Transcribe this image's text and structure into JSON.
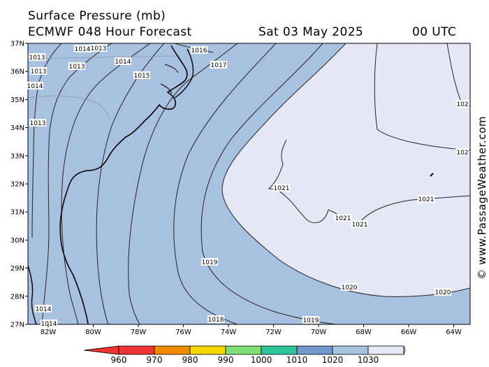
{
  "header": {
    "title_line1": "Surface Pressure (mb)",
    "title_line2": "ECMWF 048 Hour Forecast",
    "valid_date": "Sat 03 May 2025",
    "valid_time": "00 UTC"
  },
  "credit": "© www.PassageWeather.com",
  "map": {
    "lat_labels": [
      "37N",
      "36N",
      "35N",
      "34N",
      "33N",
      "32N",
      "31N",
      "30N",
      "29N",
      "28N",
      "27N"
    ],
    "lon_labels": [
      "82W",
      "80W",
      "78W",
      "76W",
      "74W",
      "72W",
      "70W",
      "68W",
      "66W",
      "64W"
    ],
    "fill_colors": {
      "band_1010": "#a9c1e0",
      "band_1020": "#e2e9f5",
      "land": "#a9c1e0"
    },
    "isobar_labels": [
      "1013",
      "1014",
      "1013",
      "1016",
      "1013",
      "1014",
      "1017",
      "1013",
      "1015",
      "1014",
      "1013",
      "1014",
      "1021",
      "1021",
      "1021",
      "1021",
      "1019",
      "1020",
      "1020",
      "1018",
      "1019",
      "1014",
      "102",
      "102"
    ]
  },
  "colorbar": {
    "labels": [
      "960",
      "970",
      "980",
      "990",
      "1000",
      "1010",
      "1020",
      "1030"
    ],
    "colors": [
      "#ee3333",
      "#f08a00",
      "#f4d800",
      "#7ee070",
      "#2ec49a",
      "#6f98cf",
      "#a9c1e0",
      "#e2e9f5"
    ]
  }
}
